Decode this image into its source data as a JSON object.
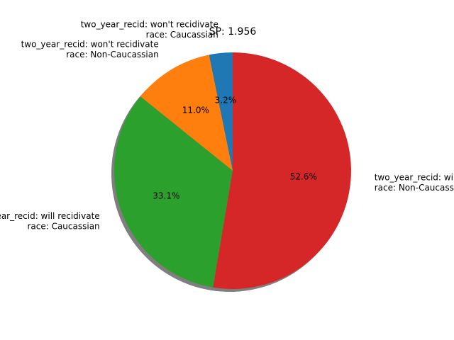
{
  "chart_data": {
    "type": "pie",
    "title": "SP: 1.956",
    "shadow": true,
    "start_angle_deg": 90,
    "direction": "counterclockwise",
    "slices": [
      {
        "label_lines": [
          "two_year_recid: won't recidivate",
          "race: Caucassian"
        ],
        "percent": 3.2,
        "pct_label": "3.2%",
        "color": "#1f77b4"
      },
      {
        "label_lines": [
          "two_year_recid: won't recidivate",
          "race: Non-Caucassian"
        ],
        "percent": 11.0,
        "pct_label": "11.0%",
        "color": "#ff7f0e"
      },
      {
        "label_lines": [
          "two_year_recid: will recidivate",
          "race: Caucassian"
        ],
        "percent": 33.1,
        "pct_label": "33.1%",
        "color": "#2ca02c"
      },
      {
        "label_lines": [
          "two_year_recid: will recidivate",
          "race: Non-Caucassian"
        ],
        "percent": 52.6,
        "pct_label": "52.6%",
        "color": "#d62728"
      }
    ]
  }
}
